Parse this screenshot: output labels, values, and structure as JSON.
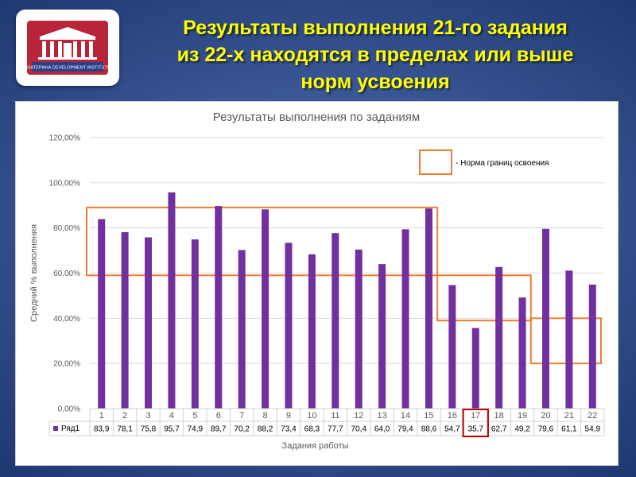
{
  "header": {
    "title_lines": [
      "Результаты выполнения 21-го задания",
      "из 22-х находятся в пределах или выше",
      "норм усвоения"
    ],
    "logo": {
      "caption": "ЕКАТЕРИНА DEVELOPMENT INSTITUTE"
    }
  },
  "colors": {
    "bar": "#7030a0",
    "norm_outline": "#ed7d31",
    "highlight": "#c00000",
    "title": "#ffff00"
  },
  "chart_data": {
    "type": "bar",
    "title": "Результаты выполнения по заданиям",
    "xlabel": "Задания работы",
    "ylabel": "Средний % выполнения",
    "ylim": [
      0,
      120
    ],
    "y_ticks": [
      "0,00%",
      "20,00%",
      "40,00%",
      "60,00%",
      "80,00%",
      "100,00%",
      "120,00%"
    ],
    "categories": [
      "1",
      "2",
      "3",
      "4",
      "5",
      "6",
      "7",
      "8",
      "9",
      "10",
      "11",
      "12",
      "13",
      "14",
      "15",
      "16",
      "17",
      "18",
      "19",
      "20",
      "21",
      "22"
    ],
    "series": [
      {
        "name": "Ряд1",
        "values": [
          83.9,
          78.1,
          75.8,
          95.7,
          74.9,
          89.7,
          70.2,
          88.2,
          73.4,
          68.3,
          77.7,
          70.4,
          64.0,
          79.4,
          88.6,
          54.7,
          35.7,
          62.7,
          49.2,
          79.6,
          61.1,
          54.9
        ],
        "value_labels": [
          "83,9",
          "78,1",
          "75,8",
          "95,7",
          "74,9",
          "89,7",
          "70,2",
          "88,2",
          "73,4",
          "68,3",
          "77,7",
          "70,4",
          "64,0",
          "79,4",
          "88,6",
          "54,7",
          "35,7",
          "62,7",
          "49,2",
          "79,6",
          "61,1",
          "54,9"
        ]
      }
    ],
    "highlighted_category": "17",
    "legend": {
      "label": "- Норма границ освоения",
      "placement": "top-right"
    },
    "norm_bands": [
      {
        "from": "1",
        "to": "15",
        "low": 59,
        "high": 89
      },
      {
        "from": "16",
        "to": "19",
        "low": 39,
        "high": 59
      },
      {
        "from": "20",
        "to": "22",
        "low": 20,
        "high": 40
      }
    ],
    "grid": true
  }
}
